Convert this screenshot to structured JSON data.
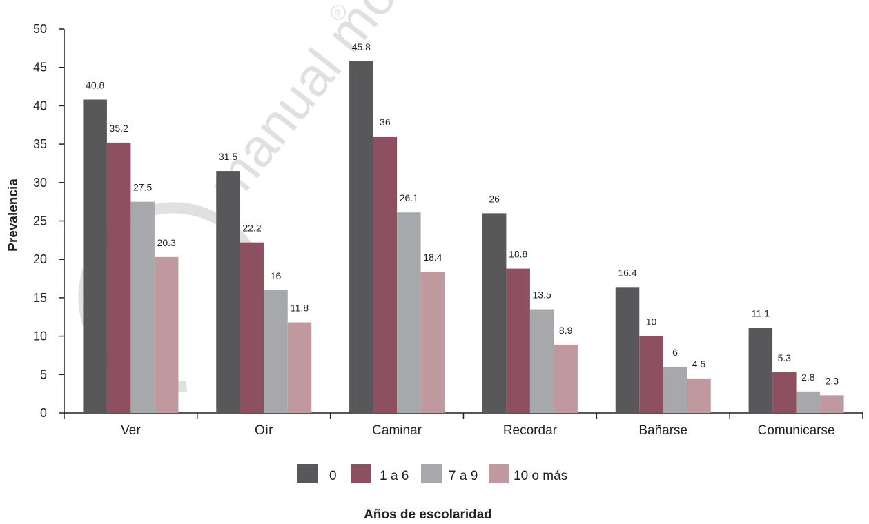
{
  "chart_data": {
    "type": "bar",
    "categories": [
      "Ver",
      "Oír",
      "Caminar",
      "Recordar",
      "Bañarse",
      "Comunicarse"
    ],
    "series": [
      {
        "name": "0",
        "color": "#58585a",
        "values": [
          40.8,
          31.5,
          45.8,
          26,
          16.4,
          11.1
        ]
      },
      {
        "name": "1 a 6",
        "color": "#8c5060",
        "values": [
          35.2,
          22.2,
          36,
          18.8,
          10,
          5.3
        ]
      },
      {
        "name": "7 a 9",
        "color": "#a7a8ab",
        "values": [
          27.5,
          16,
          26.1,
          13.5,
          6,
          2.8
        ]
      },
      {
        "name": "10 o más",
        "color": "#bf999e",
        "values": [
          20.3,
          11.8,
          18.4,
          8.9,
          4.5,
          2.3
        ]
      }
    ],
    "xlabel": "Años de escolaridad",
    "ylabel": "Prevalencia",
    "ylim": [
      0,
      50
    ],
    "yticks": [
      0,
      5,
      10,
      15,
      20,
      25,
      30,
      35,
      40,
      45,
      50
    ],
    "grid": false,
    "legend": "bottom",
    "watermark": "manual moderno"
  }
}
